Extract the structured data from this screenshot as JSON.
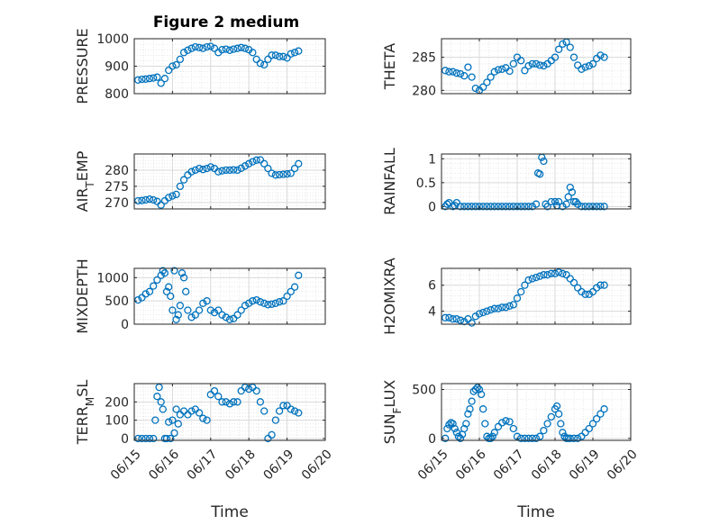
{
  "figure": {
    "title": "Figure 2 medium"
  },
  "style": {
    "marker_color": "#0072BD",
    "grid_color": "#d9d9d9",
    "axis_color": "#262626",
    "background": "#ffffff"
  },
  "chart_data": [
    {
      "id": "pressure",
      "type": "scatter",
      "title": "Figure 2 medium",
      "ylabel": "PRESSURE",
      "ylabel_parts": [
        {
          "t": "PRESSURE",
          "sub": false
        }
      ],
      "xlabel": "",
      "xlim": [
        0,
        5
      ],
      "ylim": [
        800,
        1000
      ],
      "yticks": [
        800,
        900,
        1000
      ],
      "xticks": [
        0,
        1,
        2,
        3,
        4,
        5
      ],
      "xticklabels": [
        "06/15",
        "06/16",
        "06/17",
        "06/18",
        "06/19",
        "06/20"
      ],
      "show_xticklabels": false,
      "grid": true,
      "minor_grid": true,
      "x": [
        0.1,
        0.2,
        0.3,
        0.4,
        0.5,
        0.6,
        0.7,
        0.8,
        0.9,
        1.0,
        1.1,
        1.2,
        1.3,
        1.4,
        1.5,
        1.6,
        1.7,
        1.8,
        1.9,
        2.0,
        2.1,
        2.2,
        2.3,
        2.4,
        2.5,
        2.6,
        2.7,
        2.8,
        2.9,
        3.0,
        3.1,
        3.2,
        3.3,
        3.4,
        3.5,
        3.6,
        3.7,
        3.8,
        3.9,
        4.0,
        4.1,
        4.2,
        4.3
      ],
      "y": [
        850,
        852,
        853,
        855,
        857,
        860,
        838,
        855,
        885,
        900,
        905,
        925,
        950,
        958,
        965,
        970,
        968,
        965,
        970,
        972,
        965,
        950,
        960,
        962,
        958,
        962,
        965,
        968,
        965,
        960,
        950,
        925,
        910,
        905,
        925,
        940,
        940,
        935,
        935,
        930,
        945,
        950,
        955
      ]
    },
    {
      "id": "theta",
      "type": "scatter",
      "ylabel": "THETA",
      "ylabel_parts": [
        {
          "t": "THETA",
          "sub": false
        }
      ],
      "xlabel": "",
      "xlim": [
        0,
        5
      ],
      "ylim": [
        279.5,
        287.8
      ],
      "yticks": [
        280,
        285
      ],
      "xticks": [
        0,
        1,
        2,
        3,
        4,
        5
      ],
      "xticklabels": [
        "06/15",
        "06/16",
        "06/17",
        "06/18",
        "06/19",
        "06/20"
      ],
      "show_xticklabels": false,
      "grid": true,
      "minor_grid": true,
      "x": [
        0.1,
        0.2,
        0.3,
        0.4,
        0.5,
        0.6,
        0.7,
        0.8,
        0.9,
        1.0,
        1.1,
        1.2,
        1.3,
        1.4,
        1.5,
        1.6,
        1.7,
        1.8,
        1.9,
        2.0,
        2.1,
        2.2,
        2.3,
        2.4,
        2.5,
        2.6,
        2.7,
        2.8,
        2.9,
        3.0,
        3.1,
        3.2,
        3.3,
        3.4,
        3.5,
        3.6,
        3.7,
        3.8,
        3.9,
        4.0,
        4.1,
        4.2,
        4.3
      ],
      "y": [
        283,
        282.8,
        282.8,
        282.6,
        282.5,
        282.2,
        283.5,
        282,
        280.3,
        280,
        280.5,
        281.2,
        282,
        282.8,
        283.1,
        283.2,
        283.4,
        282.9,
        284,
        285,
        284.5,
        283,
        283.7,
        284,
        284,
        283.8,
        283.7,
        284,
        284.5,
        285,
        286.2,
        287,
        287.3,
        286.5,
        285,
        283.8,
        283.2,
        283.5,
        283.7,
        284,
        284.8,
        285.3,
        285
      ]
    },
    {
      "id": "air_temp",
      "type": "scatter",
      "ylabel": "AIR_TEMP",
      "ylabel_parts": [
        {
          "t": "AIR",
          "sub": false
        },
        {
          "t": "T",
          "sub": true
        },
        {
          "t": "EMP",
          "sub": false
        }
      ],
      "xlabel": "",
      "xlim": [
        0,
        5
      ],
      "ylim": [
        268,
        285
      ],
      "yticks": [
        270,
        275,
        280
      ],
      "xticks": [
        0,
        1,
        2,
        3,
        4,
        5
      ],
      "xticklabels": [
        "06/15",
        "06/16",
        "06/17",
        "06/18",
        "06/19",
        "06/20"
      ],
      "show_xticklabels": false,
      "grid": true,
      "minor_grid": true,
      "x": [
        0.1,
        0.2,
        0.3,
        0.4,
        0.5,
        0.6,
        0.7,
        0.8,
        0.9,
        1.0,
        1.1,
        1.2,
        1.3,
        1.4,
        1.5,
        1.6,
        1.7,
        1.8,
        1.9,
        2.0,
        2.1,
        2.2,
        2.3,
        2.4,
        2.5,
        2.6,
        2.7,
        2.8,
        2.9,
        3.0,
        3.1,
        3.2,
        3.3,
        3.4,
        3.5,
        3.6,
        3.7,
        3.8,
        3.9,
        4.0,
        4.1,
        4.2,
        4.3
      ],
      "y": [
        270.5,
        270.6,
        270.8,
        271,
        270.8,
        270.3,
        269.2,
        270.5,
        271.5,
        272,
        272.5,
        275,
        277,
        278.5,
        279.5,
        280,
        280.5,
        280.2,
        280.5,
        281,
        280.5,
        279.5,
        279.8,
        280,
        280,
        280.1,
        280,
        280.6,
        281.3,
        282,
        282.6,
        283.1,
        283.2,
        282,
        280.5,
        279,
        278.5,
        278.6,
        278.7,
        278.8,
        279,
        280.5,
        282
      ]
    },
    {
      "id": "rainfall",
      "type": "scatter",
      "ylabel": "RAINFALL",
      "ylabel_parts": [
        {
          "t": "RAINFALL",
          "sub": false
        }
      ],
      "xlabel": "",
      "xlim": [
        0,
        5
      ],
      "ylim": [
        -0.05,
        1.1
      ],
      "yticks": [
        0,
        0.5,
        1
      ],
      "ytickfmt": "frac",
      "xticks": [
        0,
        1,
        2,
        3,
        4,
        5
      ],
      "xticklabels": [
        "06/15",
        "06/16",
        "06/17",
        "06/18",
        "06/19",
        "06/20"
      ],
      "show_xticklabels": false,
      "grid": true,
      "minor_grid": true,
      "x": [
        0.1,
        0.15,
        0.2,
        0.3,
        0.35,
        0.4,
        0.5,
        0.6,
        0.7,
        0.8,
        0.9,
        1.0,
        1.1,
        1.2,
        1.3,
        1.4,
        1.5,
        1.6,
        1.7,
        1.8,
        1.9,
        2.0,
        2.1,
        2.2,
        2.3,
        2.4,
        2.5,
        2.55,
        2.6,
        2.65,
        2.7,
        2.75,
        2.8,
        2.9,
        3.0,
        3.05,
        3.1,
        3.2,
        3.3,
        3.35,
        3.4,
        3.45,
        3.5,
        3.55,
        3.6,
        3.7,
        3.8,
        3.9,
        4.0,
        4.1,
        4.2,
        4.3
      ],
      "y": [
        0,
        0.05,
        0.08,
        0,
        0.02,
        0.08,
        0,
        0,
        0,
        0,
        0,
        0,
        0,
        0,
        0,
        0,
        0,
        0,
        0,
        0,
        0,
        0,
        0,
        0,
        0,
        0,
        0.05,
        0.7,
        0.68,
        1.03,
        0.95,
        0.05,
        0,
        0.1,
        0.1,
        0.02,
        0.1,
        0,
        0.05,
        0.2,
        0.4,
        0.3,
        0.1,
        0.1,
        0.05,
        0,
        0,
        0,
        0,
        0,
        0,
        0
      ]
    },
    {
      "id": "mixdepth",
      "type": "scatter",
      "ylabel": "MIXDEPTH",
      "ylabel_parts": [
        {
          "t": "MIXDEPTH",
          "sub": false
        }
      ],
      "xlabel": "",
      "xlim": [
        0,
        5
      ],
      "ylim": [
        0,
        1200
      ],
      "yticks": [
        0,
        500,
        1000
      ],
      "xticks": [
        0,
        1,
        2,
        3,
        4,
        5
      ],
      "xticklabels": [
        "06/15",
        "06/16",
        "06/17",
        "06/18",
        "06/19",
        "06/20"
      ],
      "show_xticklabels": false,
      "grid": true,
      "minor_grid": true,
      "x": [
        0.1,
        0.2,
        0.3,
        0.4,
        0.5,
        0.6,
        0.7,
        0.75,
        0.8,
        0.85,
        0.9,
        0.95,
        1.0,
        1.05,
        1.1,
        1.15,
        1.2,
        1.25,
        1.3,
        1.35,
        1.4,
        1.5,
        1.6,
        1.7,
        1.8,
        1.9,
        2.0,
        2.1,
        2.2,
        2.3,
        2.4,
        2.5,
        2.6,
        2.7,
        2.8,
        2.9,
        3.0,
        3.1,
        3.2,
        3.3,
        3.4,
        3.5,
        3.6,
        3.7,
        3.8,
        3.9,
        4.0,
        4.1,
        4.2,
        4.3
      ],
      "y": [
        520,
        570,
        650,
        700,
        820,
        950,
        1050,
        1150,
        1100,
        700,
        800,
        600,
        300,
        1150,
        100,
        200,
        400,
        1100,
        1000,
        700,
        300,
        150,
        200,
        300,
        450,
        500,
        300,
        250,
        300,
        200,
        150,
        100,
        120,
        200,
        300,
        400,
        450,
        500,
        520,
        480,
        450,
        420,
        430,
        450,
        480,
        500,
        600,
        700,
        800,
        1050
      ]
    },
    {
      "id": "h2omixra",
      "type": "scatter",
      "ylabel": "H2OMIXRA",
      "ylabel_parts": [
        {
          "t": "H2OMIXRA",
          "sub": false
        }
      ],
      "xlabel": "",
      "xlim": [
        0,
        5
      ],
      "ylim": [
        3,
        7.3
      ],
      "yticks": [
        4,
        6
      ],
      "xticks": [
        0,
        1,
        2,
        3,
        4,
        5
      ],
      "xticklabels": [
        "06/15",
        "06/16",
        "06/17",
        "06/18",
        "06/19",
        "06/20"
      ],
      "show_xticklabels": false,
      "grid": true,
      "minor_grid": true,
      "x": [
        0.1,
        0.2,
        0.3,
        0.4,
        0.5,
        0.6,
        0.7,
        0.8,
        0.9,
        1.0,
        1.1,
        1.2,
        1.3,
        1.4,
        1.5,
        1.6,
        1.7,
        1.8,
        1.9,
        2.0,
        2.1,
        2.2,
        2.3,
        2.4,
        2.5,
        2.6,
        2.7,
        2.8,
        2.9,
        3.0,
        3.1,
        3.2,
        3.3,
        3.4,
        3.5,
        3.6,
        3.7,
        3.8,
        3.9,
        4.0,
        4.1,
        4.2,
        4.3
      ],
      "y": [
        3.5,
        3.5,
        3.4,
        3.4,
        3.3,
        3.2,
        3.4,
        3.1,
        3.6,
        3.8,
        3.9,
        4,
        4.1,
        4.2,
        4.2,
        4.3,
        4.3,
        4.4,
        4.5,
        5,
        5.5,
        6,
        6.4,
        6.5,
        6.6,
        6.7,
        6.8,
        6.8,
        6.9,
        6.9,
        7,
        6.9,
        6.8,
        6.5,
        6.2,
        5.8,
        5.5,
        5.3,
        5.3,
        5.5,
        5.8,
        6,
        6
      ]
    },
    {
      "id": "terr_msl",
      "type": "scatter",
      "ylabel": "TERR_MSL",
      "ylabel_parts": [
        {
          "t": "TERR",
          "sub": false
        },
        {
          "t": "M",
          "sub": true
        },
        {
          "t": "SL",
          "sub": false
        }
      ],
      "xlabel": "Time",
      "xlim": [
        0,
        5
      ],
      "ylim": [
        -10,
        300
      ],
      "yticks": [
        0,
        100,
        200
      ],
      "xticks": [
        0,
        1,
        2,
        3,
        4,
        5
      ],
      "xticklabels": [
        "06/15",
        "06/16",
        "06/17",
        "06/18",
        "06/19",
        "06/20"
      ],
      "show_xticklabels": true,
      "grid": true,
      "minor_grid": true,
      "x": [
        0.1,
        0.2,
        0.3,
        0.4,
        0.5,
        0.55,
        0.6,
        0.65,
        0.7,
        0.75,
        0.8,
        0.85,
        0.9,
        0.95,
        1.0,
        1.05,
        1.1,
        1.15,
        1.2,
        1.3,
        1.4,
        1.5,
        1.6,
        1.7,
        1.8,
        1.9,
        2.0,
        2.1,
        2.2,
        2.3,
        2.4,
        2.5,
        2.6,
        2.7,
        2.8,
        2.9,
        3.0,
        3.1,
        3.2,
        3.3,
        3.4,
        3.5,
        3.6,
        3.7,
        3.8,
        3.9,
        4.0,
        4.1,
        4.2,
        4.3
      ],
      "y": [
        0,
        0,
        0,
        0,
        0,
        100,
        230,
        280,
        200,
        160,
        0,
        0,
        90,
        0,
        100,
        30,
        160,
        80,
        130,
        150,
        130,
        150,
        160,
        140,
        110,
        100,
        240,
        260,
        230,
        200,
        200,
        190,
        200,
        200,
        260,
        280,
        270,
        280,
        260,
        200,
        150,
        0,
        20,
        100,
        150,
        180,
        180,
        160,
        150,
        140
      ]
    },
    {
      "id": "sun_flux",
      "type": "scatter",
      "ylabel": "SUN_FLUX",
      "ylabel_parts": [
        {
          "t": "SUN",
          "sub": false
        },
        {
          "t": "F",
          "sub": true
        },
        {
          "t": "LUX",
          "sub": false
        }
      ],
      "xlabel": "Time",
      "xlim": [
        0,
        5
      ],
      "ylim": [
        -20,
        560
      ],
      "yticks": [
        0,
        500
      ],
      "xticks": [
        0,
        1,
        2,
        3,
        4,
        5
      ],
      "xticklabels": [
        "06/15",
        "06/16",
        "06/17",
        "06/18",
        "06/19",
        "06/20"
      ],
      "show_xticklabels": true,
      "grid": true,
      "minor_grid": true,
      "x": [
        0.1,
        0.15,
        0.2,
        0.25,
        0.3,
        0.35,
        0.4,
        0.45,
        0.5,
        0.55,
        0.6,
        0.65,
        0.7,
        0.75,
        0.8,
        0.85,
        0.9,
        0.95,
        1.0,
        1.05,
        1.1,
        1.15,
        1.2,
        1.25,
        1.3,
        1.35,
        1.4,
        1.5,
        1.6,
        1.7,
        1.8,
        1.9,
        2.0,
        2.1,
        2.2,
        2.3,
        2.4,
        2.5,
        2.6,
        2.7,
        2.8,
        2.9,
        3.0,
        3.05,
        3.1,
        3.15,
        3.2,
        3.25,
        3.3,
        3.35,
        3.4,
        3.5,
        3.6,
        3.7,
        3.8,
        3.9,
        4.0,
        4.1,
        4.2,
        4.3
      ],
      "y": [
        0,
        100,
        140,
        160,
        150,
        100,
        60,
        20,
        0,
        40,
        100,
        150,
        250,
        300,
        380,
        480,
        500,
        520,
        500,
        450,
        300,
        150,
        20,
        0,
        0,
        20,
        60,
        120,
        160,
        180,
        170,
        100,
        20,
        0,
        0,
        0,
        0,
        0,
        20,
        80,
        150,
        220,
        300,
        330,
        250,
        150,
        60,
        20,
        0,
        0,
        0,
        0,
        0,
        20,
        60,
        100,
        150,
        200,
        250,
        300
      ]
    }
  ]
}
